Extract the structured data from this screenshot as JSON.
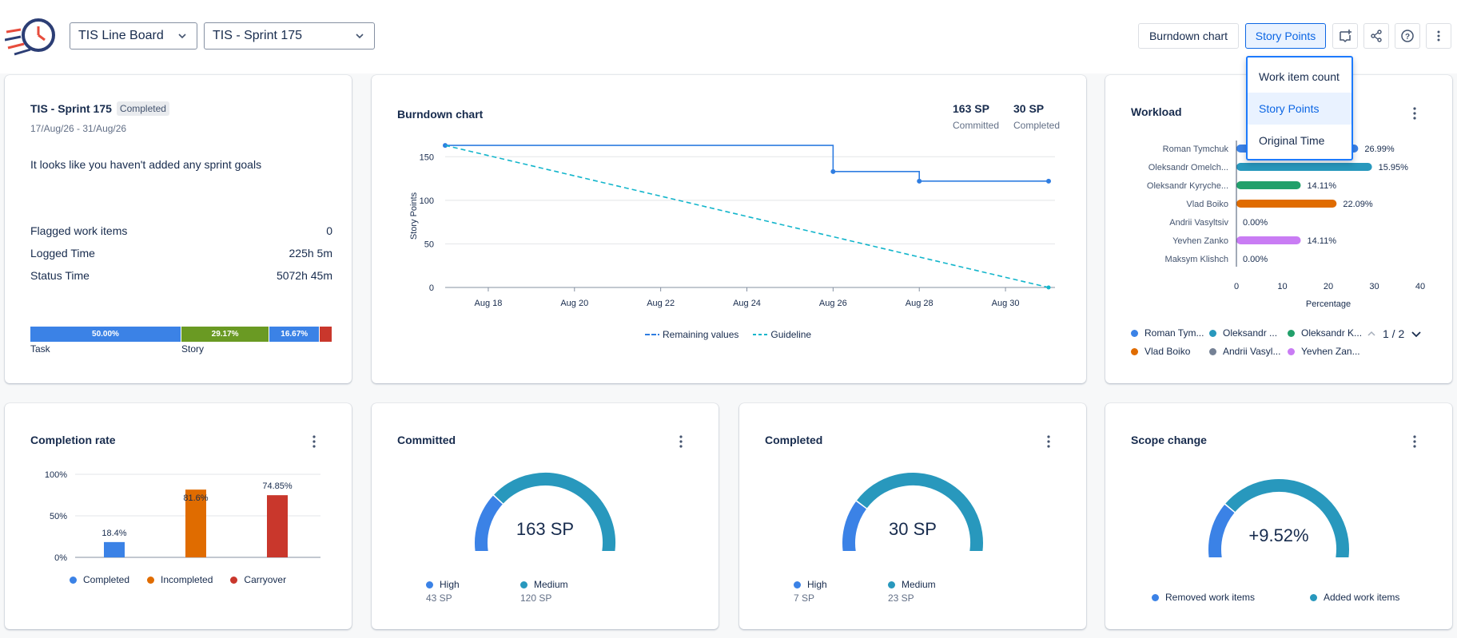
{
  "header": {
    "board_select": "TIS Line Board",
    "sprint_select": "TIS - Sprint 175",
    "burndown_btn": "Burndown chart",
    "metric_btn": "Story Points",
    "icons": [
      "add-widget-icon",
      "share-icon",
      "help-icon",
      "more-icon"
    ]
  },
  "dropdown": {
    "items": [
      "Work item count",
      "Story Points",
      "Original Time"
    ],
    "selected": "Story Points"
  },
  "sprint_card": {
    "title": "TIS - Sprint 175",
    "badge": "Completed",
    "dates": "17/Aug/26 - 31/Aug/26",
    "goals": "It looks like you haven't added any sprint goals",
    "stats": [
      {
        "label": "Flagged work items",
        "value": "0"
      },
      {
        "label": "Logged Time",
        "value": "225h 5m"
      },
      {
        "label": "Status Time",
        "value": "5072h 45m"
      }
    ],
    "bar": [
      {
        "label": "50.00%",
        "fraction": 0.5,
        "color": "#3b82e6",
        "caption": "Task"
      },
      {
        "label": "29.17%",
        "fraction": 0.2917,
        "color": "#6a9a23",
        "caption": "Story"
      },
      {
        "label": "16.67%",
        "fraction": 0.1667,
        "color": "#3b82e6",
        "caption": ""
      },
      {
        "label": "",
        "fraction": 0.0416,
        "color": "#c9372c",
        "caption": ""
      }
    ]
  },
  "burndown": {
    "title": "Burndown chart",
    "committed_value": "163 SP",
    "committed_label": "Committed",
    "completed_value": "30 SP",
    "completed_label": "Completed",
    "legend_remaining": "Remaining values",
    "legend_guideline": "Guideline"
  },
  "workload": {
    "title": "Workload",
    "pager": "1 / 2",
    "legend": [
      {
        "name": "Roman Tym...",
        "color": "#3b82e6"
      },
      {
        "name": "Oleksandr ...",
        "color": "#2898bd"
      },
      {
        "name": "Oleksandr K...",
        "color": "#22a06b"
      },
      {
        "name": "Vlad Boiko",
        "color": "#e06c00"
      },
      {
        "name": "Andrii Vasyl...",
        "color": "#758195"
      },
      {
        "name": "Yevhen Zan...",
        "color": "#c97cf4"
      }
    ]
  },
  "completion": {
    "title": "Completion rate",
    "legend": [
      {
        "name": "Completed",
        "color": "#3b82e6"
      },
      {
        "name": "Incompleted",
        "color": "#e06c00"
      },
      {
        "name": "Carryover",
        "color": "#c9372c"
      }
    ]
  },
  "committed": {
    "title": "Committed",
    "center": "163 SP",
    "legend": [
      {
        "name": "High",
        "value": "43 SP",
        "color": "#3b82e6"
      },
      {
        "name": "Medium",
        "value": "120 SP",
        "color": "#2898bd"
      }
    ],
    "fraction_high": 0.2638
  },
  "completed": {
    "title": "Completed",
    "center": "30 SP",
    "legend": [
      {
        "name": "High",
        "value": "7 SP",
        "color": "#3b82e6"
      },
      {
        "name": "Medium",
        "value": "23 SP",
        "color": "#2898bd"
      }
    ],
    "fraction_high": 0.2333
  },
  "scope": {
    "title": "Scope change",
    "center": "+9.52%",
    "legend": [
      {
        "name": "Removed work items",
        "color": "#3b82e6"
      },
      {
        "name": "Added work items",
        "color": "#2898bd"
      }
    ],
    "fraction_removed": 0.25
  },
  "chart_data": [
    {
      "type": "line",
      "title": "Burndown chart",
      "ylabel": "Story Points",
      "ylim": [
        0,
        175
      ],
      "x_ticks": [
        "Aug 18",
        "Aug 20",
        "Aug 22",
        "Aug 24",
        "Aug 26",
        "Aug 28",
        "Aug 30"
      ],
      "y_ticks": [
        0,
        50,
        100,
        150
      ],
      "grid": true,
      "series": [
        {
          "name": "Remaining values",
          "style": "step",
          "color": "#2f7de1",
          "points": [
            [
              "Aug 17",
              163
            ],
            [
              "Aug 26",
              163
            ],
            [
              "Aug 26",
              133
            ],
            [
              "Aug 28",
              133
            ],
            [
              "Aug 28",
              122
            ],
            [
              "Aug 31",
              122
            ]
          ]
        },
        {
          "name": "Guideline",
          "style": "dashed",
          "color": "#12b5cb",
          "points": [
            [
              "Aug 17",
              163
            ],
            [
              "Aug 31",
              0
            ]
          ]
        }
      ]
    },
    {
      "type": "bar",
      "orientation": "horizontal",
      "title": "Workload",
      "xlabel": "Percentage",
      "xlim": [
        0,
        40
      ],
      "x_ticks": [
        0,
        10,
        20,
        30,
        40
      ],
      "categories": [
        "Roman Tymchuk",
        "Oleksandr Omelch...",
        "Oleksandr Kyryche...",
        "Vlad Boiko",
        "Andrii Vasyltsiv",
        "Yevhen Zanko",
        "Maksym Klishch"
      ],
      "values": [
        26.99,
        15.95,
        14.11,
        22.09,
        0.0,
        14.11,
        0.0
      ],
      "labels": [
        "26.99%",
        "15.95%",
        "14.11%",
        "22.09%",
        "0.00%",
        "14.11%",
        "0.00%"
      ],
      "bar_extent": [
        26.5,
        29.5,
        14.0,
        21.8,
        0,
        14.0,
        0
      ],
      "colors": [
        "#3b82e6",
        "#2898bd",
        "#22a06b",
        "#e06c00",
        "#758195",
        "#c97cf4",
        "#758195"
      ]
    },
    {
      "type": "bar",
      "title": "Completion rate",
      "categories": [
        "Completed",
        "Incompleted",
        "Carryover"
      ],
      "values": [
        18.4,
        81.6,
        74.85
      ],
      "labels": [
        "18.4%",
        "81.6%",
        "74.85%"
      ],
      "ylim": [
        0,
        100
      ],
      "y_ticks": [
        "0%",
        "50%",
        "100%"
      ],
      "colors": [
        "#3b82e6",
        "#e06c00",
        "#c9372c"
      ]
    }
  ]
}
